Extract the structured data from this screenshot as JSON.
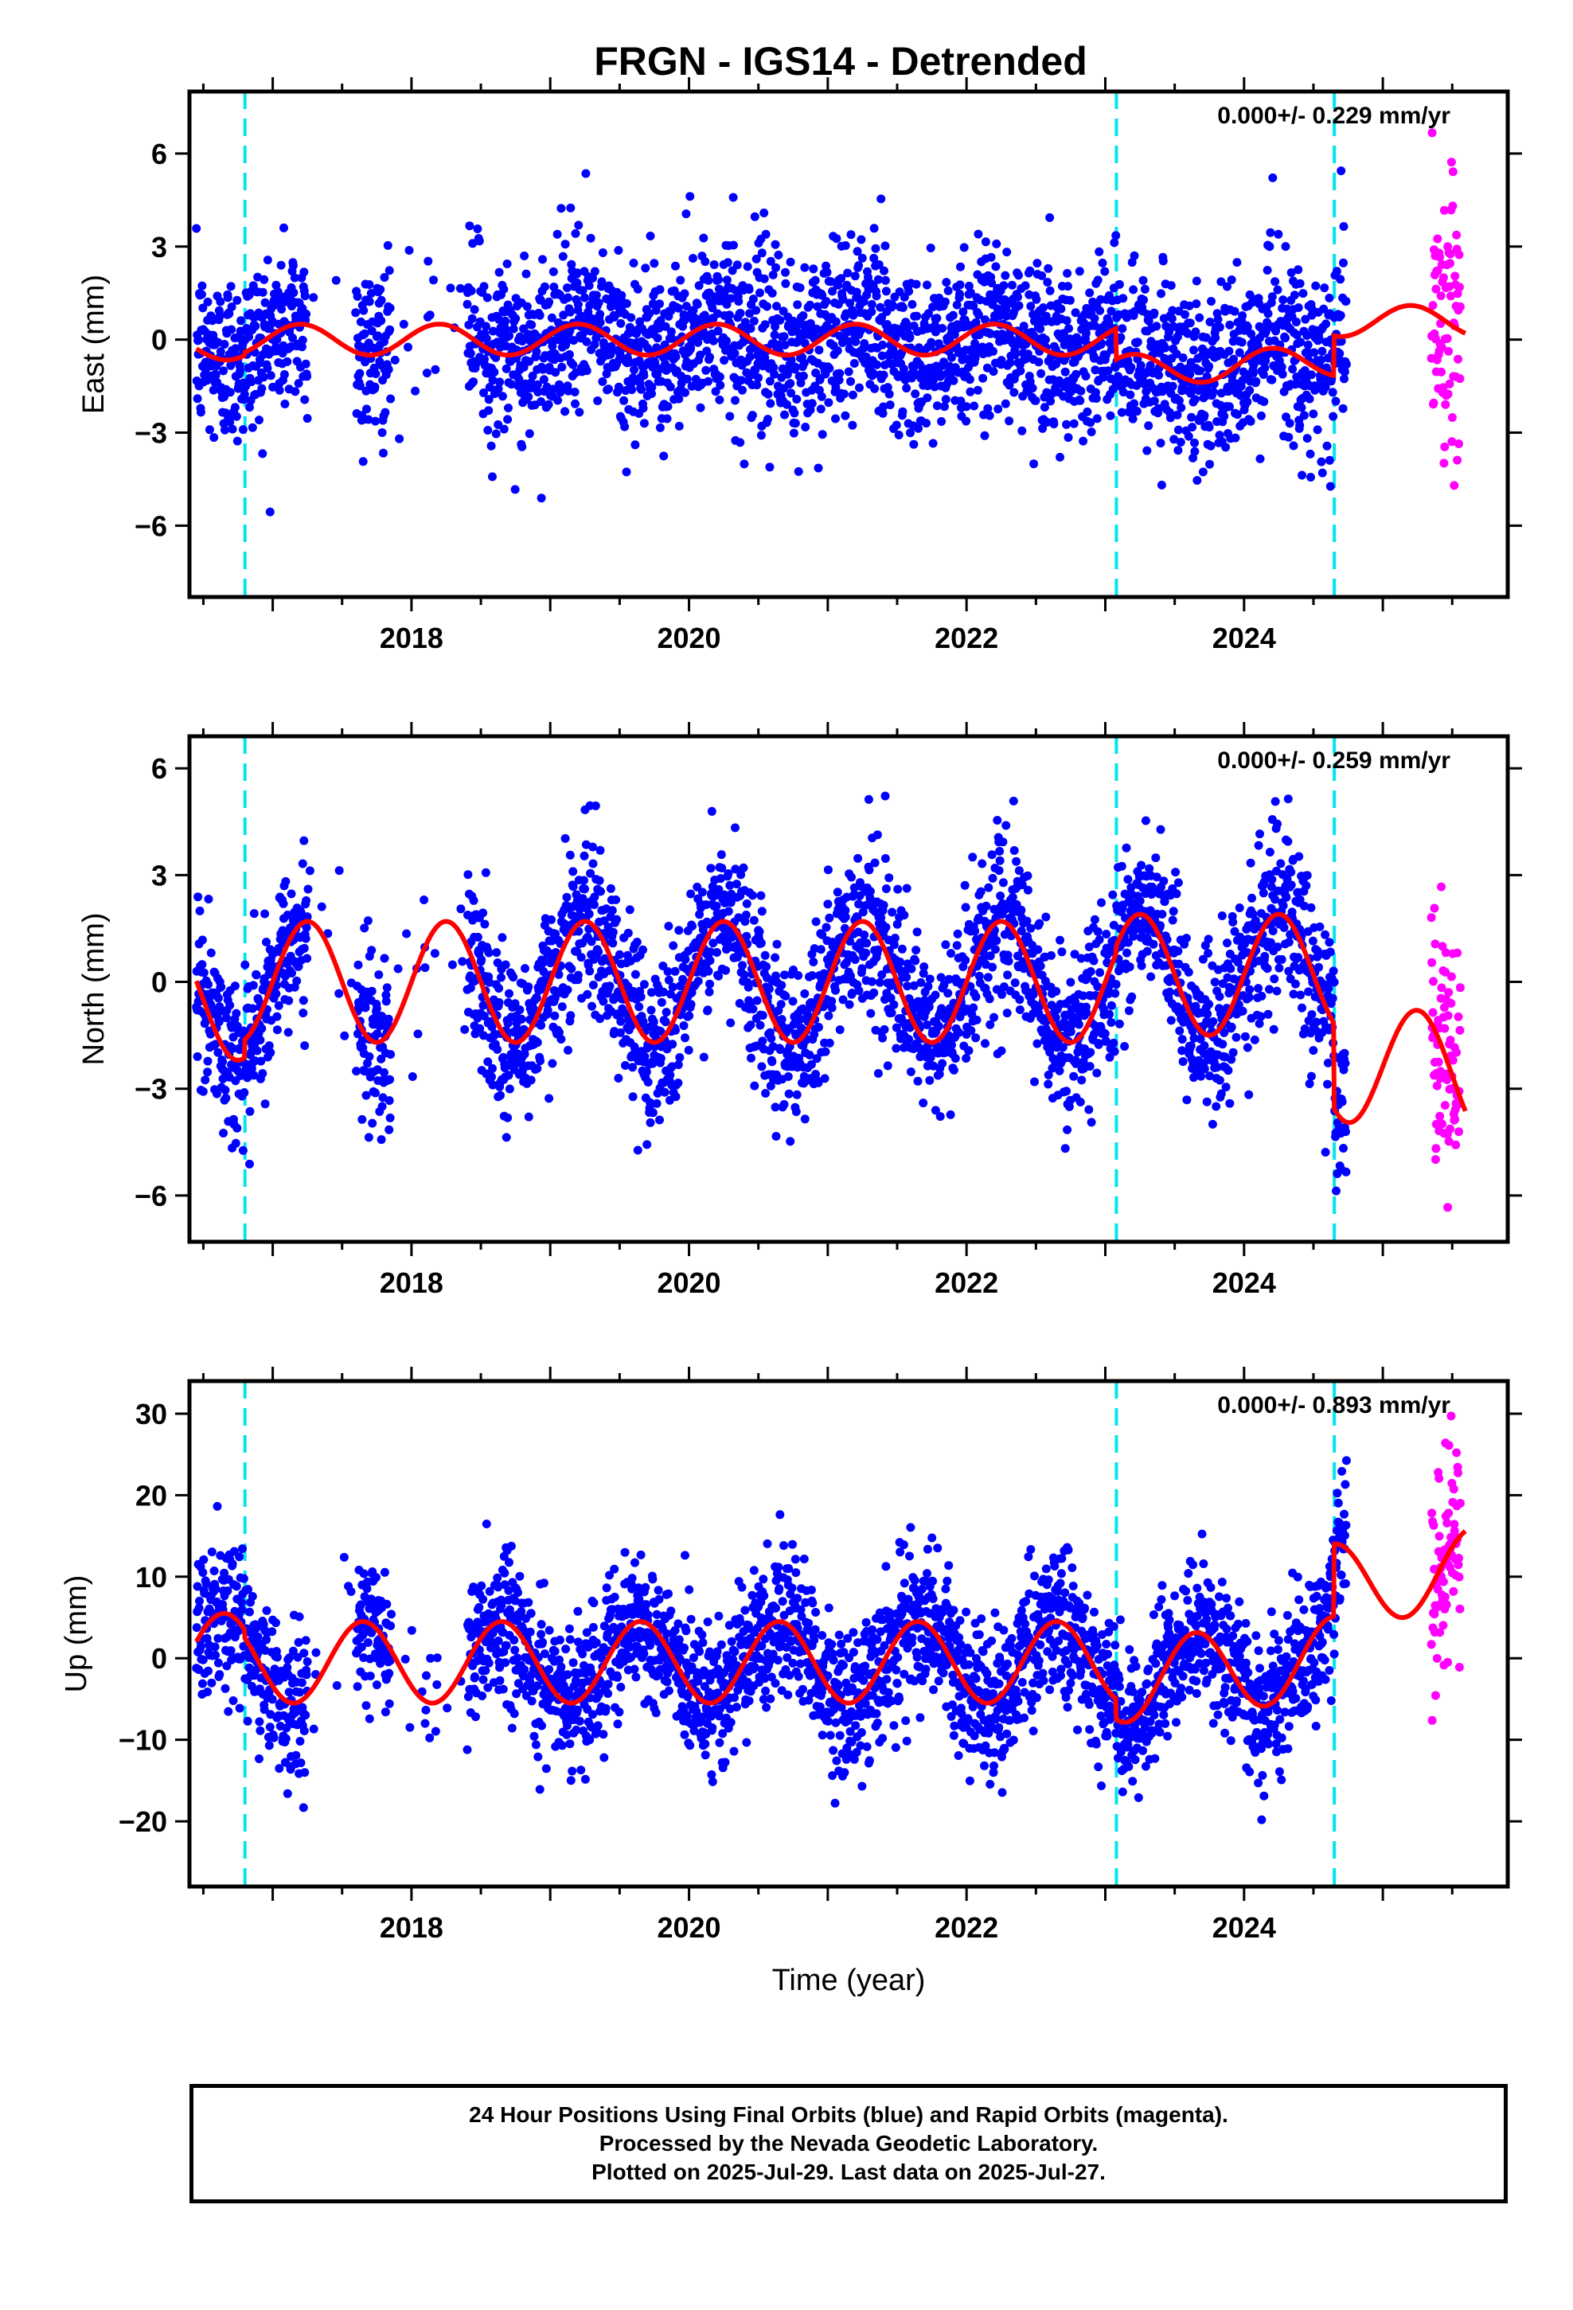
{
  "figure": {
    "title": "FRGN - IGS14 - Detrended",
    "colors": {
      "final_orbits": "#0000ff",
      "rapid_orbits": "#ff00ff",
      "model": "#ff0000",
      "events": "#00e5ee"
    },
    "footer": [
      "24 Hour Positions Using Final Orbits (blue) and Rapid Orbits (magenta).",
      "Processed by the Nevada Geodetic Laboratory.",
      "Plotted on 2025-Jul-29. Last data on 2025-Jul-27."
    ]
  },
  "chart_data": [
    {
      "type": "scatter",
      "component": "East",
      "ylabel": "East (mm)",
      "xlabel": "",
      "xlim": [
        2016.4,
        2025.9
      ],
      "ylim": [
        -8.3,
        8.0
      ],
      "yticks": [
        -6,
        -3,
        0,
        3,
        6
      ],
      "xticks": [
        2018,
        2020,
        2022,
        2024
      ],
      "rate": "0.000+/- 0.229 mm/yr",
      "event_lines": [
        2016.8,
        2023.08,
        2024.65
      ],
      "seasonal": {
        "amplitude": 0.5,
        "phase_peak_frac": 0.2,
        "spread": 1.4
      },
      "segments": [
        {
          "start": 2016.45,
          "end": 2016.8,
          "offset": -0.3,
          "trend": 0.6
        },
        {
          "start": 2016.8,
          "end": 2023.08,
          "offset": 0.0,
          "trend": 0.0
        },
        {
          "start": 2023.08,
          "end": 2024.65,
          "offset": -1.0,
          "trend": 0.2
        },
        {
          "start": 2024.65,
          "end": 2025.6,
          "offset": 0.6,
          "trend": 0.0
        }
      ],
      "final_range": [
        2016.45,
        2024.74
      ],
      "rapid_range": [
        2025.35,
        2025.56
      ],
      "rapid_spread": 2.2,
      "gaps": [
        [
          2017.25,
          2017.6
        ],
        [
          2017.85,
          2018.4
        ]
      ]
    },
    {
      "type": "scatter",
      "component": "North",
      "ylabel": "North (mm)",
      "xlabel": "",
      "xlim": [
        2016.4,
        2025.9
      ],
      "ylim": [
        -7.3,
        6.9
      ],
      "yticks": [
        -6,
        -3,
        0,
        3,
        6
      ],
      "xticks": [
        2018,
        2020,
        2022,
        2024
      ],
      "rate": "0.000+/- 0.259 mm/yr",
      "event_lines": [
        2016.8,
        2023.08,
        2024.65
      ],
      "seasonal": {
        "amplitude": 1.7,
        "phase_peak_frac": 0.25,
        "spread": 1.2
      },
      "segments": [
        {
          "start": 2016.45,
          "end": 2016.8,
          "offset": -0.5,
          "trend": 0.0
        },
        {
          "start": 2016.8,
          "end": 2023.08,
          "offset": 0.0,
          "trend": 0.0
        },
        {
          "start": 2023.08,
          "end": 2024.65,
          "offset": 0.2,
          "trend": 0.0
        },
        {
          "start": 2024.65,
          "end": 2025.6,
          "offset": -2.2,
          "trend": -0.5
        }
      ],
      "final_range": [
        2016.45,
        2024.74
      ],
      "rapid_range": [
        2025.35,
        2025.56
      ],
      "rapid_spread": 1.8,
      "gaps": [
        [
          2017.25,
          2017.6
        ],
        [
          2017.85,
          2018.4
        ]
      ]
    },
    {
      "type": "scatter",
      "component": "Up",
      "ylabel": "Up (mm)",
      "xlabel": "Time (year)",
      "xlim": [
        2016.4,
        2025.9
      ],
      "ylim": [
        -28,
        34
      ],
      "yticks": [
        -20,
        -10,
        0,
        10,
        20,
        30
      ],
      "xticks": [
        2018,
        2020,
        2022,
        2024
      ],
      "rate": "0.000+/- 0.893 mm/yr",
      "event_lines": [
        2016.8,
        2023.08,
        2024.65
      ],
      "seasonal": {
        "amplitude": 5.0,
        "phase_peak_frac": 0.65,
        "spread": 4.5
      },
      "segments": [
        {
          "start": 2016.45,
          "end": 2016.8,
          "offset": 0.5,
          "trend": 0.0
        },
        {
          "start": 2016.8,
          "end": 2023.08,
          "offset": -0.5,
          "trend": 0.0
        },
        {
          "start": 2023.08,
          "end": 2024.65,
          "offset": -3.0,
          "trend": 2.0
        },
        {
          "start": 2024.65,
          "end": 2025.6,
          "offset": 9.0,
          "trend": 2.0
        }
      ],
      "final_range": [
        2016.45,
        2024.74
      ],
      "rapid_range": [
        2025.35,
        2025.56
      ],
      "rapid_spread": 6.0,
      "gaps": [
        [
          2017.25,
          2017.6
        ],
        [
          2017.85,
          2018.4
        ]
      ]
    }
  ]
}
